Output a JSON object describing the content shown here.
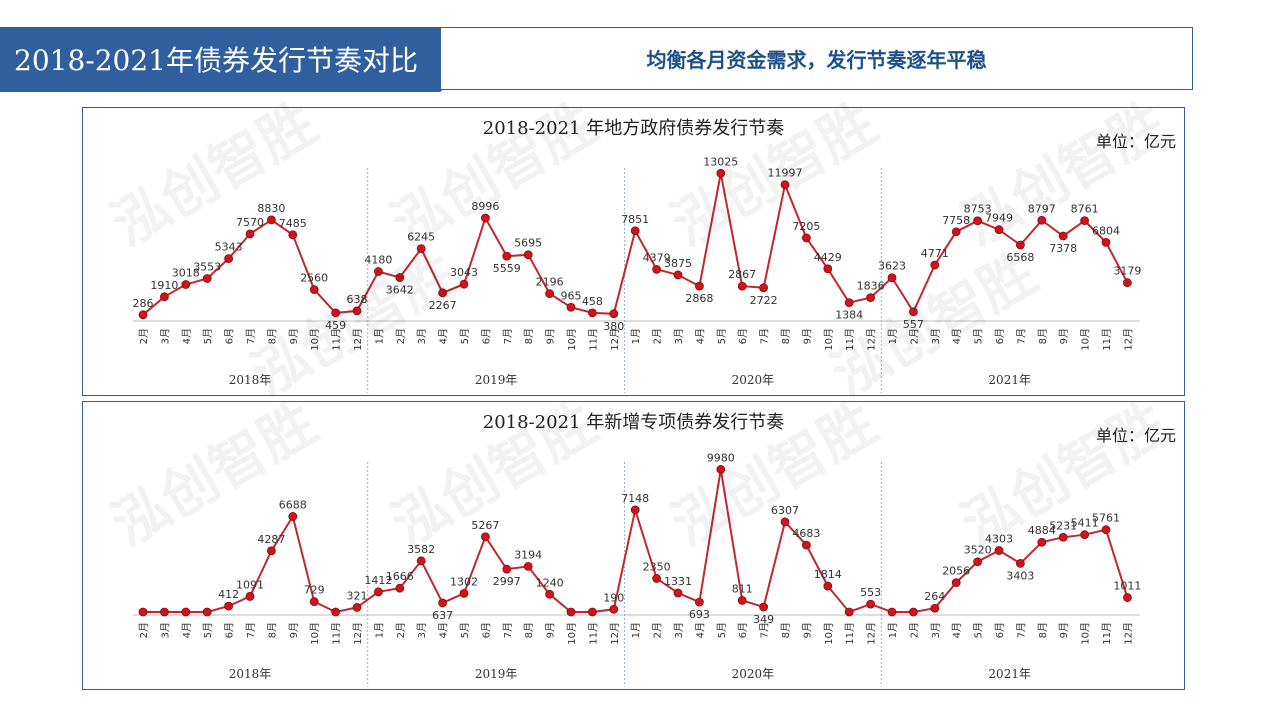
{
  "header": {
    "title": "2018-2021年债券发行节奏对比",
    "subtitle": "均衡各月资金需求，发行节奏逐年平稳"
  },
  "watermark": "泓创智胜",
  "colors": {
    "line": "#c0282d",
    "dot": "#d0141c",
    "accent": "#2f5f9e"
  },
  "chart_data": [
    {
      "type": "line",
      "title": "2018-2021 年地方政府债券发行节奏",
      "unit": "单位：亿元",
      "years": [
        {
          "year": "2018年",
          "months": [
            "2月",
            "3月",
            "4月",
            "5月",
            "6月",
            "7月",
            "8月",
            "9月",
            "10月",
            "11月",
            "12月"
          ],
          "values": [
            286,
            1910,
            3018,
            3553,
            5343,
            7570,
            8830,
            7485,
            2560,
            459,
            638
          ]
        },
        {
          "year": "2019年",
          "months": [
            "1月",
            "2月",
            "3月",
            "4月",
            "5月",
            "6月",
            "7月",
            "8月",
            "9月",
            "10月",
            "11月",
            "12月"
          ],
          "values": [
            4180,
            3642,
            6245,
            2267,
            3043,
            8996,
            5559,
            5695,
            2196,
            965,
            458,
            380
          ]
        },
        {
          "year": "2020年",
          "months": [
            "1月",
            "2月",
            "3月",
            "4月",
            "5月",
            "6月",
            "7月",
            "8月",
            "9月",
            "10月",
            "11月",
            "12月"
          ],
          "values": [
            7851,
            4379,
            3875,
            2868,
            13025,
            2867,
            2722,
            11997,
            7205,
            4429,
            1384,
            1836
          ]
        },
        {
          "year": "2021年",
          "months": [
            "1月",
            "2月",
            "3月",
            "4月",
            "5月",
            "6月",
            "7月",
            "8月",
            "9月",
            "10月",
            "11月",
            "12月"
          ],
          "values": [
            3623,
            557,
            4771,
            7758,
            8753,
            7949,
            6568,
            8797,
            7378,
            8761,
            6804,
            3179
          ]
        }
      ],
      "ylim": [
        0,
        13500
      ]
    },
    {
      "type": "line",
      "title": "2018-2021 年新增专项债券发行节奏",
      "unit": "单位：亿元",
      "years": [
        {
          "year": "2018年",
          "months": [
            "2月",
            "3月",
            "4月",
            "5月",
            "6月",
            "7月",
            "8月",
            "9月",
            "10月",
            "11月",
            "12月"
          ],
          "values": [
            0,
            0,
            0,
            0,
            412,
            1091,
            4287,
            6688,
            729,
            null,
            321
          ]
        },
        {
          "year": "2019年",
          "months": [
            "1月",
            "2月",
            "3月",
            "4月",
            "5月",
            "6月",
            "7月",
            "8月",
            "9月",
            "10月",
            "11月",
            "12月"
          ],
          "values": [
            1412,
            1666,
            3582,
            637,
            1302,
            5267,
            2997,
            3194,
            1240,
            null,
            null,
            190
          ]
        },
        {
          "year": "2020年",
          "months": [
            "1月",
            "2月",
            "3月",
            "4月",
            "5月",
            "6月",
            "7月",
            "8月",
            "9月",
            "10月",
            "11月",
            "12月"
          ],
          "values": [
            7148,
            2350,
            1331,
            693,
            9980,
            811,
            349,
            6307,
            4683,
            1814,
            null,
            553
          ]
        },
        {
          "year": "2021年",
          "months": [
            "1月",
            "2月",
            "3月",
            "4月",
            "5月",
            "6月",
            "7月",
            "8月",
            "9月",
            "10月",
            "11月",
            "12月"
          ],
          "values": [
            null,
            null,
            264,
            2056,
            3520,
            4303,
            3403,
            4884,
            5231,
            5411,
            5761,
            1011
          ]
        }
      ],
      "ylim": [
        0,
        10500
      ]
    }
  ]
}
